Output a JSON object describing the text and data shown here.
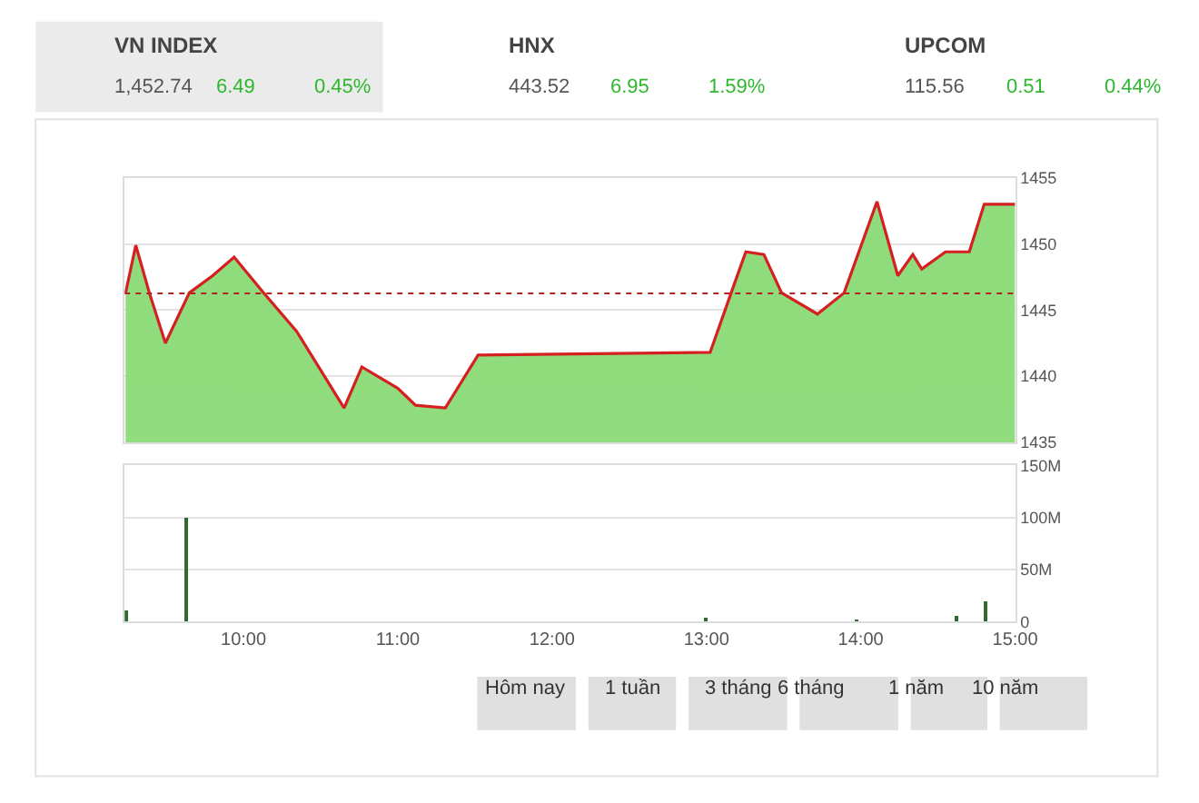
{
  "chart_data": [
    {
      "type": "other",
      "annotations": [
        "VN INDEX",
        "1,452.74",
        "6.49",
        "0.45%",
        "HNX",
        "443.52",
        "6.95",
        "1.59%",
        "UPCOM",
        "115.56",
        "0.51",
        "0.44%"
      ]
    },
    {
      "type": "area",
      "xlim": [
        9.23,
        15.0
      ],
      "ylim": [
        1435,
        1455
      ],
      "yticks": [
        1435,
        1440,
        1445,
        1450,
        1455
      ],
      "tick_labels": "y",
      "grid": "y",
      "ref_lines": [
        {
          "axis": "y",
          "value": 1446.25,
          "color": "#b22222",
          "line_style": "dotted"
        }
      ],
      "series": [
        {
          "type": "area",
          "color": "#d42020",
          "x": [
            9.236,
            9.302,
            9.39,
            9.494,
            9.649,
            9.8,
            9.939,
            10.131,
            10.344,
            10.652,
            10.767,
            10.999,
            11.115,
            11.308,
            11.52,
            13.024,
            13.16,
            13.255,
            13.372,
            13.487,
            13.719,
            13.892,
            14.105,
            14.24,
            14.337,
            14.395,
            14.549,
            14.703,
            14.8,
            15.0
          ],
          "values": [
            1446.3,
            1449.9,
            1446.3,
            1442.5,
            1446.3,
            1447.6,
            1449.0,
            1446.3,
            1443.4,
            1437.6,
            1440.7,
            1439.1,
            1437.8,
            1437.6,
            1441.6,
            1441.8,
            1446.3,
            1449.4,
            1449.2,
            1446.3,
            1444.7,
            1446.3,
            1453.2,
            1447.6,
            1449.2,
            1448.1,
            1449.4,
            1449.4,
            1453.0,
            1453.0
          ]
        }
      ]
    },
    {
      "type": "bar",
      "xlim": [
        9.23,
        15.0
      ],
      "ylim": [
        0,
        150
      ],
      "grid": "y",
      "xticks": [
        {
          "value": 10,
          "label": "10:00"
        },
        {
          "value": 11,
          "label": "11:00"
        },
        {
          "value": 12,
          "label": "12:00"
        },
        {
          "value": 13,
          "label": "13:00"
        },
        {
          "value": 14,
          "label": "14:00"
        },
        {
          "value": 15,
          "label": "15:00"
        }
      ],
      "yticks": [
        0,
        {
          "value": 50,
          "label": "50M"
        },
        {
          "value": 100,
          "label": "100M"
        },
        {
          "value": 150,
          "label": "150M"
        }
      ],
      "x": [
        9.24,
        9.627,
        13.0,
        13.98,
        14.62,
        14.815
      ],
      "series": [
        {
          "color": "#2e6b2e",
          "values": [
            10,
            100,
            3,
            2,
            5,
            20
          ]
        }
      ]
    },
    {
      "type": "other",
      "annotations": [
        "Hôm nay",
        "1 tuần",
        "3 tháng",
        "6 tháng",
        "1 năm",
        "10 năm"
      ]
    }
  ]
}
